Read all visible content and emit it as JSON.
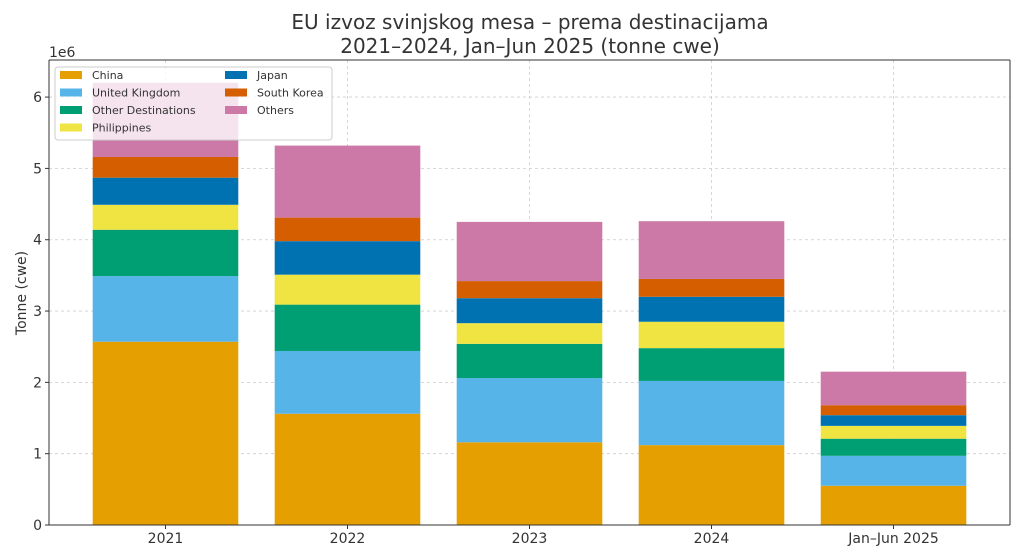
{
  "chart_data": {
    "type": "bar",
    "stacked": true,
    "title": "EU izvoz svinjskog mesa – prema destinacijama",
    "subtitle": "2021–2024, Jan–Jun 2025 (tonne cwe)",
    "xlabel": "",
    "ylabel": "Tonne (cwe)",
    "y_scale_label": "1e6",
    "ylim": [
      0,
      6.52
    ],
    "yticks": [
      0,
      1,
      2,
      3,
      4,
      5,
      6
    ],
    "grid": true,
    "legend_placement": "top-left",
    "categories": [
      "2021",
      "2022",
      "2023",
      "2024",
      "Jan–Jun 2025"
    ],
    "series": [
      {
        "name": "China",
        "color": "#E69F00",
        "values": [
          2.57,
          1.56,
          1.16,
          1.12,
          0.55
        ]
      },
      {
        "name": "United Kingdom",
        "color": "#56B4E9",
        "values": [
          0.92,
          0.88,
          0.9,
          0.9,
          0.42
        ]
      },
      {
        "name": "Other Destinations",
        "color": "#009E73",
        "values": [
          0.65,
          0.65,
          0.48,
          0.46,
          0.24
        ]
      },
      {
        "name": "Philippines",
        "color": "#F0E442",
        "values": [
          0.35,
          0.42,
          0.29,
          0.37,
          0.18
        ]
      },
      {
        "name": "Japan",
        "color": "#0072B2",
        "values": [
          0.38,
          0.47,
          0.35,
          0.35,
          0.15
        ]
      },
      {
        "name": "South Korea",
        "color": "#D55E00",
        "values": [
          0.29,
          0.33,
          0.24,
          0.25,
          0.14
        ]
      },
      {
        "name": "Others",
        "color": "#CC79A7",
        "values": [
          1.04,
          1.01,
          0.83,
          0.81,
          0.47
        ]
      }
    ]
  }
}
